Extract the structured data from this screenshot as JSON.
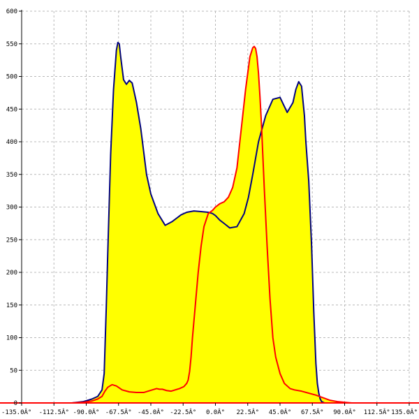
{
  "chart_data": {
    "type": "area",
    "title": "",
    "xlabel": "",
    "ylabel": "",
    "xlim": [
      -135,
      135
    ],
    "ylim": [
      0,
      600
    ],
    "grid": true,
    "x_ticks": [
      -135,
      -112.5,
      -90,
      -67.5,
      -45,
      -22.5,
      0,
      22.5,
      45,
      67.5,
      90,
      112.5,
      135
    ],
    "x_tick_labels": [
      "-135.0Â°",
      "-112.5Â°",
      "-90.0Â°",
      "-67.5Â°",
      "-45.0Â°",
      "-22.5Â°",
      "0.0Â°",
      "22.5Â°",
      "45.0Â°",
      "67.5Â°",
      "90.0Â°",
      "112.5Â°",
      "135.0Â°"
    ],
    "y_ticks": [
      0,
      50,
      100,
      150,
      200,
      250,
      300,
      350,
      400,
      450,
      500,
      550,
      600
    ],
    "y_tick_labels": [
      "0",
      "50",
      "100",
      "150",
      "200",
      "250",
      "300",
      "350",
      "400",
      "450",
      "500",
      "550",
      "600"
    ],
    "fill_color": "#ffff00",
    "series": [
      {
        "color": "#000080",
        "x": [
          -135,
          -100,
          -92,
          -86,
          -82,
          -79,
          -77.5,
          -76,
          -75,
          -73,
          -71,
          -69,
          -68,
          -67,
          -66,
          -64,
          -62,
          -60,
          -58,
          -55,
          -52,
          -48,
          -45,
          -40,
          -35,
          -30,
          -27,
          -24,
          -20,
          -15,
          -10,
          -5,
          -2,
          0,
          3,
          6,
          10,
          15,
          20,
          23,
          26,
          30,
          35,
          40,
          45,
          50,
          54,
          56,
          58,
          60,
          62,
          63,
          65,
          67,
          68.5,
          70,
          71,
          72,
          73,
          74,
          76,
          79,
          82,
          85,
          88,
          92,
          100,
          135
        ],
        "y": [
          0,
          0,
          2,
          6,
          10,
          20,
          45,
          150,
          230,
          380,
          480,
          540,
          552,
          550,
          530,
          495,
          488,
          494,
          490,
          460,
          420,
          350,
          320,
          290,
          272,
          278,
          283,
          288,
          292,
          294,
          293,
          292,
          290,
          287,
          280,
          275,
          268,
          270,
          290,
          315,
          350,
          400,
          440,
          465,
          468,
          445,
          460,
          480,
          492,
          485,
          440,
          400,
          340,
          240,
          140,
          60,
          30,
          15,
          6,
          2,
          0,
          0,
          0,
          0,
          0,
          0,
          0,
          0
        ]
      },
      {
        "color": "#ff0000",
        "x": [
          -135,
          -100,
          -92,
          -86,
          -82,
          -79,
          -77,
          -75,
          -72,
          -69,
          -65,
          -60,
          -55,
          -50,
          -47,
          -44,
          -41,
          -39,
          -37,
          -34,
          -31,
          -28,
          -25,
          -22,
          -20,
          -19,
          -18,
          -17,
          -16,
          -14,
          -12,
          -10,
          -8,
          -5,
          -2,
          0,
          3,
          6,
          9,
          12,
          15,
          18,
          21,
          24,
          26,
          27,
          28,
          29,
          30,
          31,
          32,
          33,
          34,
          36,
          38,
          40,
          42,
          45,
          48,
          52,
          55,
          60,
          65,
          70,
          75,
          80,
          85,
          90,
          95,
          100,
          135
        ],
        "y": [
          0,
          0,
          1,
          3,
          6,
          10,
          18,
          24,
          28,
          26,
          20,
          17,
          16,
          16,
          18,
          20,
          22,
          21,
          21,
          19,
          18,
          20,
          22,
          25,
          30,
          35,
          48,
          70,
          100,
          150,
          200,
          240,
          270,
          290,
          295,
          300,
          305,
          308,
          315,
          330,
          360,
          420,
          480,
          530,
          544,
          546,
          543,
          530,
          505,
          470,
          430,
          380,
          330,
          240,
          160,
          100,
          70,
          45,
          30,
          22,
          20,
          18,
          15,
          12,
          8,
          4,
          2,
          1,
          0,
          0,
          0
        ]
      }
    ]
  },
  "colors": {
    "axis": "#000000",
    "grid": "#b8b8b8",
    "baseline": "#ff0000"
  }
}
